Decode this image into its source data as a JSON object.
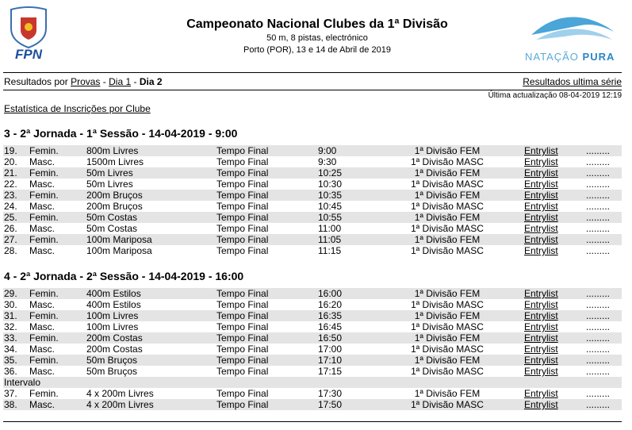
{
  "header": {
    "logo_left": "FPN",
    "title": "Campeonato Nacional Clubes da 1ª Divisão",
    "subtitle": "50 m, 8 pistas, electrónico",
    "location": "Porto (POR), 13 e 14 de Abril de 2019",
    "logo_right": [
      "NATAÇÃO",
      "PURA"
    ]
  },
  "nav": {
    "prefix": "Resultados por",
    "links": [
      "Provas",
      "Dia 1"
    ],
    "separator": "-",
    "current": "Dia 2",
    "right_link": "Resultados ultima série"
  },
  "last_update": "Última actualização 08-04-2019 12:19",
  "stats_link": "Estatística de Inscrições por Clube",
  "sections": [
    {
      "title": "3 - 2ª Jornada - 1ª Sessão - 14-04-2019 - 9:00",
      "rows": [
        [
          "19.",
          "Femin.",
          "800m Livres",
          "Tempo Final",
          "9:00",
          "1ª Divisão FEM",
          "Entrylist",
          "........."
        ],
        [
          "20.",
          "Masc.",
          "1500m Livres",
          "Tempo Final",
          "9:30",
          "1ª Divisão MASC",
          "Entrylist",
          "........."
        ],
        [
          "21.",
          "Femin.",
          "50m Livres",
          "Tempo Final",
          "10:25",
          "1ª Divisão FEM",
          "Entrylist",
          "........."
        ],
        [
          "22.",
          "Masc.",
          "50m Livres",
          "Tempo Final",
          "10:30",
          "1ª Divisão MASC",
          "Entrylist",
          "........."
        ],
        [
          "23.",
          "Femin.",
          "200m Bruços",
          "Tempo Final",
          "10:35",
          "1ª Divisão FEM",
          "Entrylist",
          "........."
        ],
        [
          "24.",
          "Masc.",
          "200m Bruços",
          "Tempo Final",
          "10:45",
          "1ª Divisão MASC",
          "Entrylist",
          "........."
        ],
        [
          "25.",
          "Femin.",
          "50m Costas",
          "Tempo Final",
          "10:55",
          "1ª Divisão FEM",
          "Entrylist",
          "........."
        ],
        [
          "26.",
          "Masc.",
          "50m Costas",
          "Tempo Final",
          "11:00",
          "1ª Divisão MASC",
          "Entrylist",
          "........."
        ],
        [
          "27.",
          "Femin.",
          "100m Mariposa",
          "Tempo Final",
          "11:05",
          "1ª Divisão FEM",
          "Entrylist",
          "........."
        ],
        [
          "28.",
          "Masc.",
          "100m Mariposa",
          "Tempo Final",
          "11:15",
          "1ª Divisão MASC",
          "Entrylist",
          "........."
        ]
      ]
    },
    {
      "title": "4 - 2ª Jornada - 2ª Sessão - 14-04-2019 - 16:00",
      "rows": [
        [
          "29.",
          "Femin.",
          "400m Estilos",
          "Tempo Final",
          "16:00",
          "1ª Divisão FEM",
          "Entrylist",
          "........."
        ],
        [
          "30.",
          "Masc.",
          "400m Estilos",
          "Tempo Final",
          "16:20",
          "1ª Divisão MASC",
          "Entrylist",
          "........."
        ],
        [
          "31.",
          "Femin.",
          "100m Livres",
          "Tempo Final",
          "16:35",
          "1ª Divisão FEM",
          "Entrylist",
          "........."
        ],
        [
          "32.",
          "Masc.",
          "100m Livres",
          "Tempo Final",
          "16:45",
          "1ª Divisão MASC",
          "Entrylist",
          "........."
        ],
        [
          "33.",
          "Femin.",
          "200m Costas",
          "Tempo Final",
          "16:50",
          "1ª Divisão FEM",
          "Entrylist",
          "........."
        ],
        [
          "34.",
          "Masc.",
          "200m Costas",
          "Tempo Final",
          "17:00",
          "1ª Divisão MASC",
          "Entrylist",
          "........."
        ],
        [
          "35.",
          "Femin.",
          "50m Bruços",
          "Tempo Final",
          "17:10",
          "1ª Divisão FEM",
          "Entrylist",
          "........."
        ],
        [
          "36.",
          "Masc.",
          "50m Bruços",
          "Tempo Final",
          "17:15",
          "1ª Divisão MASC",
          "Entrylist",
          "........."
        ],
        [
          "Intervalo"
        ],
        [
          "37.",
          "Femin.",
          "4 x 200m Livres",
          "Tempo Final",
          "17:30",
          "1ª Divisão FEM",
          "Entrylist",
          "........."
        ],
        [
          "38.",
          "Masc.",
          "4 x 200m Livres",
          "Tempo Final",
          "17:50",
          "1ª Divisão MASC",
          "Entrylist",
          "........."
        ]
      ]
    }
  ]
}
